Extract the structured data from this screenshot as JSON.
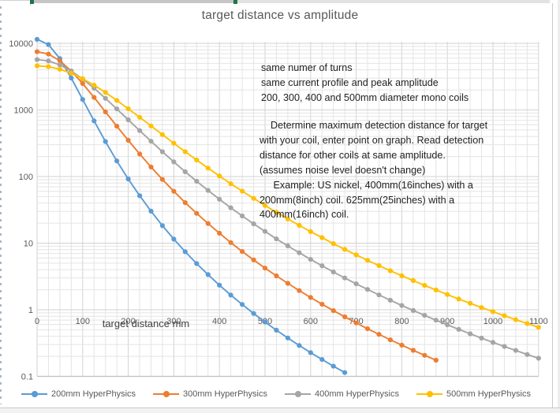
{
  "chrome": {
    "selection_handle_color": "#217346",
    "selection_bar_color": "#c6c6c6",
    "border_color": "#c9c9c9"
  },
  "chart_data": {
    "type": "line",
    "title": "target distance vs amplitude",
    "xlabel": "target distance mm",
    "ylabel": "",
    "legend_position": "bottom",
    "grid": true,
    "x_axis": {
      "min": 0,
      "max": 1100,
      "label_step": 100,
      "gridline_step": 25,
      "tick_labels": [
        "0",
        "100",
        "200",
        "300",
        "400",
        "500",
        "600",
        "700",
        "800",
        "900",
        "1000",
        "1100"
      ]
    },
    "y_axis": {
      "scale": "log",
      "min": 0.1,
      "max": 10000,
      "tick_labels": [
        "10000",
        "1000",
        "100",
        "10",
        "1",
        "0.1"
      ],
      "tick_values": [
        10000,
        1000,
        100,
        10,
        1,
        0.1
      ]
    },
    "annotations": {
      "setup_notes": [
        "same numer of turns",
        "same current profile and peak amplitude",
        "200, 300, 400 and 500mm diameter mono coils"
      ],
      "instructions": [
        "    Determine maximum detection distance for target",
        "with your coil, enter point on graph. Read detection",
        "distance for other coils at same amplitude.",
        "(assumes noise level doesn't change)",
        "     Example: US nickel, 400mm(16inches) with a",
        "200mm(8inch) coil. 625mm(25inches) with a",
        "400mm(16inch) coil."
      ]
    },
    "series": [
      {
        "name": "200mm HyperPhysics",
        "color": "#5B9BD5",
        "points": [
          [
            0,
            11500
          ],
          [
            25,
            9587
          ],
          [
            50,
            5888
          ],
          [
            75,
            3015
          ],
          [
            100,
            1438
          ],
          [
            125,
            684
          ],
          [
            150,
            335
          ],
          [
            175,
            171.5
          ],
          [
            200,
            92
          ],
          [
            225,
            51.6
          ],
          [
            250,
            30.2
          ],
          [
            275,
            18.3
          ],
          [
            300,
            11.5
          ],
          [
            325,
            7.44
          ],
          [
            350,
            4.94
          ],
          [
            375,
            3.37
          ],
          [
            400,
            2.34
          ],
          [
            425,
            1.66
          ],
          [
            450,
            1.2
          ],
          [
            475,
            0.879
          ],
          [
            500,
            0.654
          ],
          [
            525,
            0.494
          ],
          [
            550,
            0.377
          ],
          [
            575,
            0.291
          ],
          [
            600,
            0.227
          ],
          [
            625,
            0.179
          ],
          [
            650,
            0.142
          ],
          [
            675,
            0.114
          ]
        ]
      },
      {
        "name": "300mm HyperPhysics",
        "color": "#ED7D31",
        "points": [
          [
            0,
            7500
          ],
          [
            25,
            6908
          ],
          [
            50,
            5468
          ],
          [
            75,
            3840
          ],
          [
            100,
            2489
          ],
          [
            125,
            1542
          ],
          [
            150,
            937
          ],
          [
            175,
            570
          ],
          [
            200,
            350
          ],
          [
            225,
            218
          ],
          [
            250,
            139
          ],
          [
            275,
            90.4
          ],
          [
            300,
            60
          ],
          [
            325,
            40.6
          ],
          [
            350,
            28
          ],
          [
            375,
            19.7
          ],
          [
            400,
            14.1
          ],
          [
            425,
            10.2
          ],
          [
            450,
            7.5
          ],
          [
            475,
            5.59
          ],
          [
            500,
            4.22
          ],
          [
            525,
            3.23
          ],
          [
            550,
            2.49
          ],
          [
            575,
            1.94
          ],
          [
            600,
            1.53
          ],
          [
            625,
            1.21
          ],
          [
            650,
            0.97
          ],
          [
            675,
            0.782
          ],
          [
            700,
            0.635
          ],
          [
            725,
            0.519
          ],
          [
            750,
            0.427
          ],
          [
            775,
            0.353
          ],
          [
            800,
            0.294
          ],
          [
            825,
            0.246
          ],
          [
            850,
            0.207
          ],
          [
            875,
            0.175
          ]
        ]
      },
      {
        "name": "400mm HyperPhysics",
        "color": "#A5A5A5",
        "points": [
          [
            0,
            5700
          ],
          [
            25,
            5441
          ],
          [
            50,
            4752
          ],
          [
            75,
            3841
          ],
          [
            100,
            2918
          ],
          [
            125,
            2120
          ],
          [
            150,
            1494
          ],
          [
            175,
            1035
          ],
          [
            200,
            712
          ],
          [
            225,
            490
          ],
          [
            250,
            339
          ],
          [
            275,
            236
          ],
          [
            300,
            166
          ],
          [
            325,
            118
          ],
          [
            350,
            85
          ],
          [
            375,
            61.9
          ],
          [
            400,
            45.6
          ],
          [
            425,
            34
          ],
          [
            450,
            25.6
          ],
          [
            475,
            19.5
          ],
          [
            500,
            15
          ],
          [
            525,
            11.6
          ],
          [
            550,
            9.08
          ],
          [
            575,
            7.17
          ],
          [
            600,
            5.7
          ],
          [
            625,
            4.57
          ],
          [
            650,
            3.69
          ],
          [
            675,
            3.0
          ],
          [
            700,
            2.45
          ],
          [
            725,
            2.02
          ],
          [
            750,
            1.67
          ],
          [
            775,
            1.39
          ],
          [
            800,
            1.16
          ],
          [
            825,
            0.975
          ],
          [
            850,
            0.823
          ],
          [
            875,
            0.698
          ],
          [
            900,
            0.594
          ],
          [
            925,
            0.508
          ],
          [
            950,
            0.436
          ],
          [
            975,
            0.375
          ],
          [
            1000,
            0.324
          ],
          [
            1025,
            0.281
          ],
          [
            1050,
            0.245
          ],
          [
            1075,
            0.213
          ],
          [
            1100,
            0.187
          ]
        ]
      },
      {
        "name": "500mm HyperPhysics",
        "color": "#FFC000",
        "points": [
          [
            0,
            4600
          ],
          [
            25,
            4465
          ],
          [
            50,
            4089
          ],
          [
            75,
            3552
          ],
          [
            100,
            2947
          ],
          [
            125,
            2355
          ],
          [
            150,
            1829
          ],
          [
            175,
            1391
          ],
          [
            200,
            1043
          ],
          [
            225,
            776
          ],
          [
            250,
            575
          ],
          [
            275,
            426
          ],
          [
            300,
            317
          ],
          [
            325,
            236
          ],
          [
            350,
            177
          ],
          [
            375,
            134
          ],
          [
            400,
            102
          ],
          [
            425,
            78.1
          ],
          [
            450,
            60.4
          ],
          [
            475,
            47
          ],
          [
            500,
            36.8
          ],
          [
            525,
            29.1
          ],
          [
            550,
            23.1
          ],
          [
            575,
            18.5
          ],
          [
            600,
            14.9
          ],
          [
            625,
            12.1
          ],
          [
            650,
            9.84
          ],
          [
            675,
            8.07
          ],
          [
            700,
            6.66
          ],
          [
            725,
            5.52
          ],
          [
            750,
            4.6
          ],
          [
            775,
            3.85
          ],
          [
            800,
            3.24
          ],
          [
            825,
            2.74
          ],
          [
            850,
            2.32
          ],
          [
            875,
            1.98
          ],
          [
            900,
            1.69
          ],
          [
            925,
            1.45
          ],
          [
            950,
            1.25
          ],
          [
            975,
            1.08
          ],
          [
            1000,
            0.936
          ],
          [
            1025,
            0.814
          ],
          [
            1050,
            0.71
          ],
          [
            1075,
            0.621
          ],
          [
            1100,
            0.545
          ]
        ]
      }
    ],
    "style": {
      "gridline_minor_color": "#e4e4e4",
      "gridline_major_color": "#d2d2d2",
      "axis_line_color": "#bfbfbf",
      "tick_text_color": "#595959"
    }
  }
}
